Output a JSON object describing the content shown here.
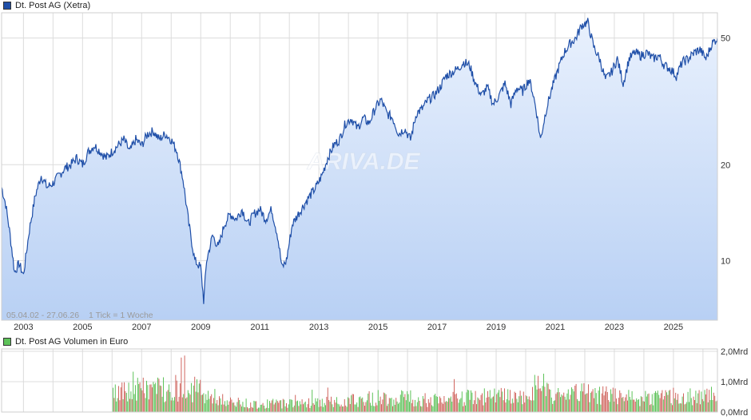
{
  "legend": {
    "price": "Dt. Post AG (Xetra)",
    "volume": "Dt. Post AG Volumen in Euro"
  },
  "watermark": "ARIVA.DE",
  "range_note": "05.04.02 - 27.06.26",
  "tick_note": "1 Tick = 1 Woche",
  "colors": {
    "line": "#1f4fa8",
    "area_top": "#e9f1fd",
    "area_bottom": "#b8d0f4",
    "grid": "#dcdcdc",
    "vol_up": "#5ec35a",
    "vol_down": "#d0655f",
    "legend_price": "#1f4fa8",
    "legend_volume": "#5ec35a"
  },
  "chart_data": [
    {
      "type": "area",
      "title": "Dt. Post AG (Xetra)",
      "y_scale": "log",
      "x_range": [
        2002.26,
        2026.49
      ],
      "ylim": [
        6.5,
        60
      ],
      "x_ticks": [
        "2003",
        "2005",
        "2007",
        "2009",
        "2011",
        "2013",
        "2015",
        "2017",
        "2019",
        "2021",
        "2023",
        "2025"
      ],
      "y_ticks": [
        {
          "value": 10,
          "label": "10"
        },
        {
          "value": 20,
          "label": "20"
        },
        {
          "value": 50,
          "label": "50"
        }
      ],
      "series": [
        {
          "x": [
            2002.26,
            2002.4,
            2002.55,
            2002.7,
            2002.85,
            2003.0,
            2003.2,
            2003.4,
            2003.6,
            2003.8,
            2004.0,
            2004.2,
            2004.4,
            2004.6,
            2004.8,
            2005.0,
            2005.2,
            2005.4,
            2005.6,
            2005.8,
            2006.0,
            2006.2,
            2006.4,
            2006.6,
            2006.8,
            2007.0,
            2007.2,
            2007.4,
            2007.6,
            2007.8,
            2008.0,
            2008.2,
            2008.4,
            2008.6,
            2008.8,
            2009.0,
            2009.1,
            2009.2,
            2009.4,
            2009.6,
            2009.8,
            2010.0,
            2010.2,
            2010.4,
            2010.6,
            2010.8,
            2011.0,
            2011.2,
            2011.4,
            2011.6,
            2011.75,
            2011.9,
            2012.1,
            2012.3,
            2012.5,
            2012.7,
            2012.9,
            2013.1,
            2013.3,
            2013.5,
            2013.7,
            2013.9,
            2014.1,
            2014.3,
            2014.5,
            2014.7,
            2014.9,
            2015.1,
            2015.3,
            2015.5,
            2015.7,
            2015.9,
            2016.1,
            2016.3,
            2016.5,
            2016.7,
            2016.9,
            2017.1,
            2017.3,
            2017.5,
            2017.7,
            2017.9,
            2018.1,
            2018.3,
            2018.5,
            2018.7,
            2018.9,
            2019.1,
            2019.3,
            2019.5,
            2019.7,
            2019.9,
            2020.1,
            2020.2,
            2020.35,
            2020.5,
            2020.7,
            2020.9,
            2021.1,
            2021.3,
            2021.5,
            2021.7,
            2021.9,
            2022.1,
            2022.3,
            2022.5,
            2022.7,
            2022.9,
            2023.1,
            2023.3,
            2023.5,
            2023.7,
            2023.9,
            2024.1,
            2024.3,
            2024.5,
            2024.7,
            2024.9,
            2025.1,
            2025.3,
            2025.5,
            2025.7,
            2025.9,
            2026.1,
            2026.3,
            2026.49
          ],
          "values": [
            17,
            15,
            12,
            9.2,
            9.8,
            9.0,
            12.5,
            16,
            18.5,
            17,
            17.5,
            18.5,
            19.5,
            20,
            21,
            20,
            22,
            23,
            22,
            21,
            22,
            23,
            24,
            22,
            24,
            23,
            25,
            25.5,
            24,
            25,
            24,
            22,
            18,
            13,
            10,
            9.5,
            7.5,
            10,
            12,
            11,
            13,
            14,
            13.5,
            14.5,
            13,
            14,
            14.5,
            13.5,
            14.5,
            12,
            9.5,
            10,
            13,
            14,
            15,
            16,
            17,
            18.5,
            21,
            23,
            24,
            27,
            28,
            26,
            28,
            27,
            30,
            32,
            29,
            28,
            25,
            26,
            24,
            29,
            30,
            32,
            33,
            35,
            38,
            39,
            40,
            42,
            41,
            36,
            33,
            35,
            31,
            33,
            36,
            31,
            35,
            34,
            37,
            35,
            30,
            24,
            30,
            35,
            40,
            45,
            48,
            50,
            55,
            56,
            47,
            43,
            37,
            39,
            43,
            36,
            43,
            45,
            44,
            45,
            43,
            44,
            41,
            40,
            38,
            42,
            43,
            45,
            46,
            43,
            48,
            50
          ]
        }
      ]
    },
    {
      "type": "bar",
      "title": "Dt. Post AG Volumen in Euro",
      "x_range": [
        2002.26,
        2026.49
      ],
      "volume_start": 2006.0,
      "ylim": [
        0,
        2.0
      ],
      "y_ticks": [
        {
          "value": 0,
          "label": "0,0Mrd"
        },
        {
          "value": 1,
          "label": "1,0Mrd"
        },
        {
          "value": 2,
          "label": "2,0Mrd"
        }
      ],
      "envelope": {
        "x": [
          2006.0,
          2007.0,
          2008.0,
          2008.8,
          2009.2,
          2010.0,
          2011.0,
          2012.0,
          2013.0,
          2014.0,
          2015.0,
          2016.0,
          2017.0,
          2018.0,
          2019.0,
          2020.0,
          2020.3,
          2021.0,
          2022.0,
          2023.0,
          2024.0,
          2025.0,
          2026.0,
          2026.49
        ],
        "values": [
          0.9,
          1.2,
          1.3,
          1.2,
          0.9,
          0.5,
          0.4,
          0.5,
          0.5,
          0.6,
          0.75,
          0.75,
          0.6,
          0.75,
          0.8,
          0.75,
          1.3,
          0.8,
          1.0,
          0.85,
          0.75,
          0.8,
          0.8,
          0.9
        ]
      }
    }
  ]
}
